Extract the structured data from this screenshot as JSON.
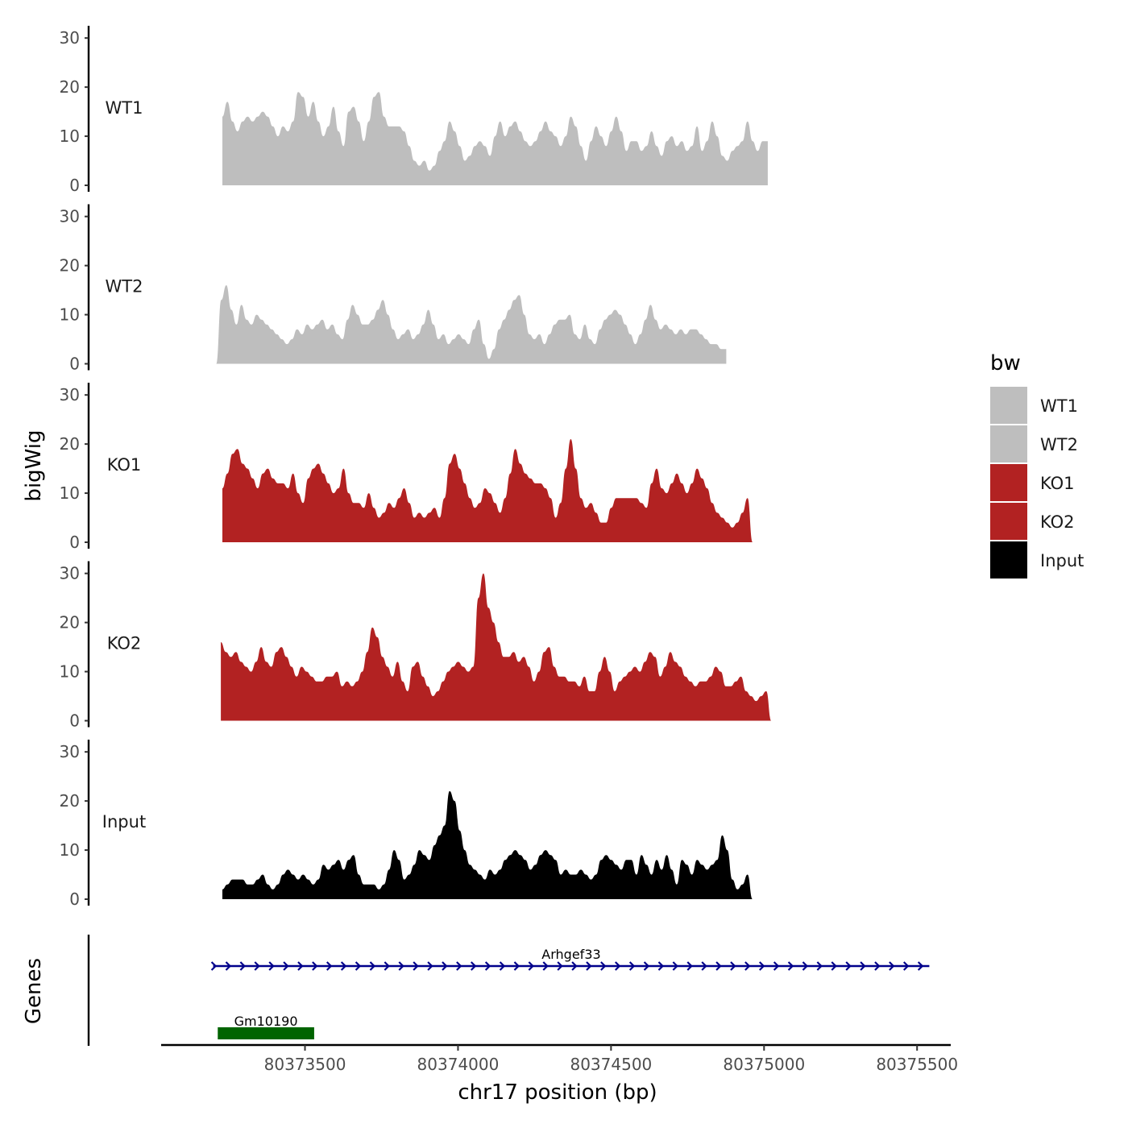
{
  "chart_data": {
    "type": "area",
    "xlabel": "chr17 position (bp)",
    "ylabel": "bigWig",
    "genes_label": "Genes",
    "xlim": [
      80373030,
      80375610
    ],
    "x_ticks": [
      "80373500",
      "80374000",
      "80374500",
      "80375000",
      "80375500"
    ],
    "ylim": [
      0,
      32
    ],
    "y_ticks": [
      "0",
      "10",
      "20",
      "30"
    ],
    "x_start": 80373230,
    "x_step": 16.5,
    "legend": {
      "title": "bw",
      "entries": [
        {
          "label": "WT1",
          "color": "#BEBEBE"
        },
        {
          "label": "WT2",
          "color": "#BEBEBE"
        },
        {
          "label": "KO1",
          "color": "#B22222"
        },
        {
          "label": "KO2",
          "color": "#B22222"
        },
        {
          "label": "Input",
          "color": "#000000"
        }
      ]
    },
    "series": [
      {
        "name": "WT1",
        "color": "#BEBEBE",
        "x_start": 80373230,
        "values": [
          14,
          17,
          13,
          11,
          13,
          14,
          13,
          14,
          15,
          14,
          12,
          10,
          12,
          11,
          13,
          19,
          18,
          14,
          17,
          13,
          10,
          12,
          16,
          11,
          8,
          15,
          16,
          13,
          9,
          13,
          18,
          19,
          14,
          12,
          12,
          12,
          11,
          8,
          5,
          4,
          5,
          3,
          4,
          7,
          9,
          13,
          11,
          8,
          5,
          6,
          8,
          9,
          8,
          6,
          10,
          13,
          10,
          12,
          13,
          11,
          9,
          8,
          9,
          11,
          13,
          11,
          10,
          8,
          10,
          14,
          12,
          8,
          5,
          9,
          12,
          10,
          8,
          11,
          14,
          11,
          7,
          9,
          9,
          7,
          8,
          11,
          8,
          6,
          9,
          10,
          8,
          9,
          7,
          8,
          12,
          7,
          9,
          13,
          10,
          6,
          5,
          7,
          8,
          9,
          13,
          9,
          7,
          9,
          9
        ]
      },
      {
        "name": "WT2",
        "color": "#BEBEBE",
        "x_start": 80373210,
        "values": [
          0,
          13,
          16,
          11,
          8,
          12,
          9,
          8,
          10,
          9,
          8,
          7,
          6,
          5,
          4,
          5,
          7,
          6,
          8,
          7,
          8,
          9,
          7,
          8,
          6,
          5,
          9,
          12,
          10,
          8,
          8,
          9,
          11,
          13,
          10,
          7,
          5,
          6,
          7,
          5,
          6,
          8,
          11,
          8,
          5,
          6,
          4,
          5,
          6,
          5,
          4,
          7,
          9,
          4,
          1,
          3,
          7,
          9,
          11,
          13,
          14,
          10,
          6,
          5,
          6,
          4,
          6,
          8,
          9,
          9,
          10,
          6,
          5,
          8,
          5,
          4,
          7,
          9,
          10,
          11,
          10,
          8,
          6,
          4,
          6,
          9,
          12,
          9,
          7,
          8,
          7,
          6,
          7,
          6,
          7,
          7,
          6,
          5,
          4,
          4,
          3,
          3
        ]
      },
      {
        "name": "KO1",
        "color": "#B22222",
        "x_start": 80373230,
        "values": [
          11,
          14,
          18,
          19,
          16,
          15,
          13,
          11,
          14,
          15,
          13,
          12,
          12,
          11,
          14,
          10,
          8,
          13,
          15,
          16,
          14,
          12,
          10,
          11,
          15,
          10,
          8,
          8,
          7,
          10,
          7,
          5,
          6,
          8,
          7,
          9,
          11,
          8,
          5,
          6,
          5,
          6,
          7,
          5,
          9,
          16,
          18,
          15,
          12,
          9,
          7,
          8,
          11,
          10,
          8,
          6,
          9,
          14,
          19,
          16,
          14,
          13,
          12,
          12,
          11,
          9,
          5,
          8,
          15,
          21,
          15,
          9,
          7,
          8,
          6,
          4,
          4,
          7,
          9,
          9,
          9,
          9,
          9,
          8,
          7,
          12,
          15,
          11,
          10,
          12,
          14,
          12,
          10,
          12,
          15,
          13,
          11,
          8,
          6,
          5,
          4,
          3,
          4,
          6,
          9,
          0
        ]
      },
      {
        "name": "KO2",
        "color": "#B22222",
        "x_start": 80373225,
        "values": [
          16,
          14,
          13,
          14,
          12,
          11,
          10,
          12,
          15,
          12,
          11,
          14,
          15,
          13,
          11,
          9,
          11,
          10,
          9,
          8,
          8,
          9,
          9,
          10,
          7,
          8,
          7,
          8,
          10,
          14,
          19,
          17,
          13,
          11,
          9,
          12,
          8,
          6,
          11,
          12,
          9,
          7,
          5,
          6,
          8,
          10,
          11,
          12,
          11,
          10,
          11,
          25,
          30,
          23,
          20,
          16,
          13,
          13,
          14,
          12,
          13,
          11,
          8,
          10,
          14,
          15,
          11,
          9,
          9,
          8,
          8,
          7,
          9,
          6,
          6,
          10,
          13,
          10,
          6,
          8,
          9,
          10,
          11,
          10,
          12,
          14,
          13,
          9,
          11,
          14,
          12,
          11,
          9,
          8,
          7,
          8,
          8,
          9,
          11,
          10,
          7,
          7,
          8,
          9,
          6,
          5,
          4,
          5,
          6,
          0
        ]
      },
      {
        "name": "Input",
        "color": "#000000",
        "x_start": 80373230,
        "values": [
          2,
          3,
          4,
          4,
          4,
          3,
          3,
          4,
          5,
          3,
          2,
          3,
          5,
          6,
          5,
          4,
          5,
          4,
          3,
          4,
          7,
          6,
          7,
          8,
          6,
          8,
          9,
          5,
          3,
          3,
          3,
          2,
          3,
          6,
          10,
          8,
          4,
          5,
          7,
          10,
          9,
          8,
          11,
          13,
          15,
          22,
          20,
          14,
          10,
          7,
          6,
          5,
          4,
          6,
          5,
          6,
          8,
          9,
          10,
          9,
          8,
          6,
          7,
          9,
          10,
          9,
          8,
          5,
          6,
          5,
          5,
          6,
          5,
          4,
          5,
          8,
          9,
          8,
          7,
          6,
          8,
          8,
          5,
          9,
          7,
          5,
          8,
          6,
          9,
          6,
          3,
          8,
          7,
          5,
          8,
          7,
          6,
          7,
          8,
          13,
          10,
          4,
          2,
          3,
          5,
          0
        ]
      }
    ],
    "genes": [
      {
        "name": "Arhgef33",
        "start": 80373200,
        "end": 80375540,
        "color": "#00008B",
        "strand": "+"
      },
      {
        "name": "Gm10190",
        "start": 80373215,
        "end": 80373530,
        "color": "#006400",
        "strand": ""
      }
    ]
  }
}
